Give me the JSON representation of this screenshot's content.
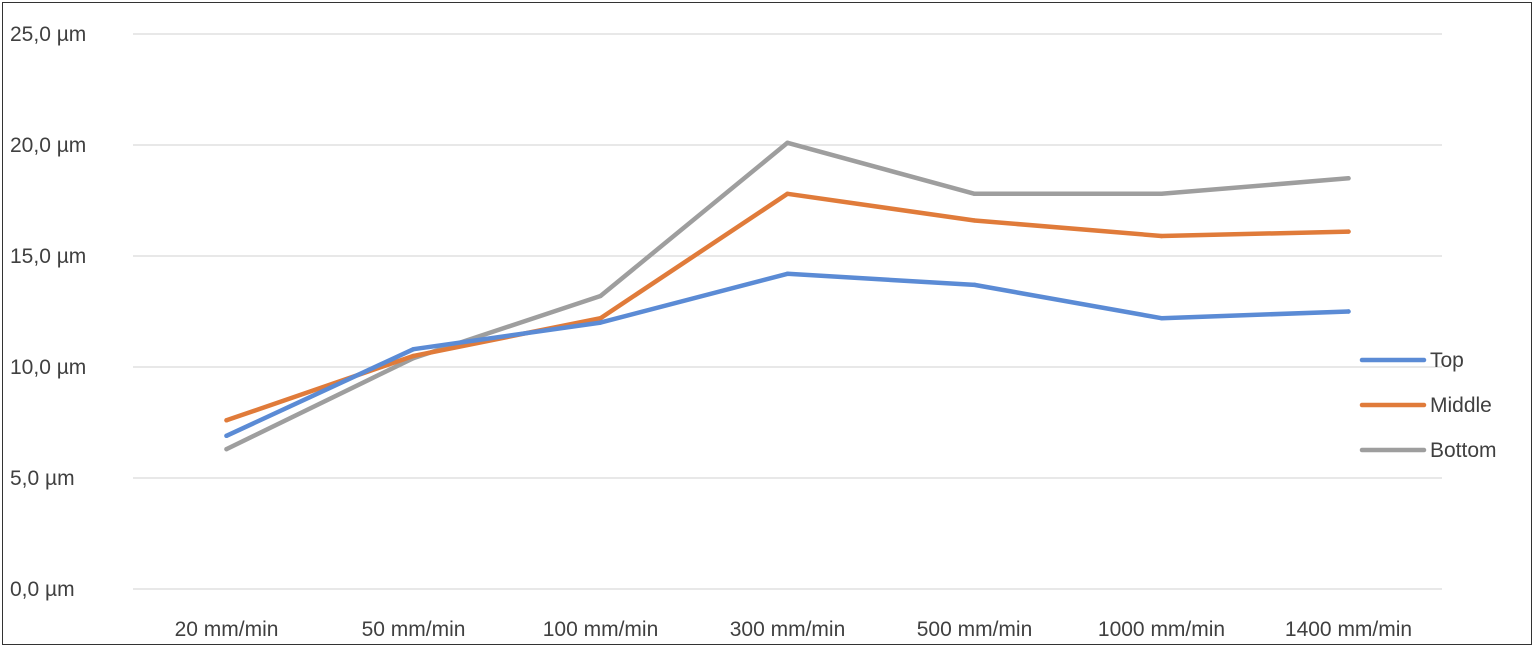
{
  "chart_data": {
    "type": "line",
    "title": "",
    "xlabel": "",
    "ylabel": "",
    "categories": [
      "20 mm/min",
      "50 mm/min",
      "100 mm/min",
      "300 mm/min",
      "500 mm/min",
      "1000 mm/min",
      "1400 mm/min"
    ],
    "y_ticks": [
      {
        "value": 0,
        "label": "0,0 µm"
      },
      {
        "value": 5,
        "label": "5,0 µm"
      },
      {
        "value": 10,
        "label": "10,0 µm"
      },
      {
        "value": 15,
        "label": "15,0 µm"
      },
      {
        "value": 20,
        "label": "20,0 µm"
      },
      {
        "value": 25,
        "label": "25,0 µm"
      }
    ],
    "ylim": [
      0,
      25
    ],
    "grid": true,
    "legend_position": "right",
    "series": [
      {
        "name": "Top",
        "color": "#5B8BD5",
        "values": [
          6.9,
          10.8,
          12.0,
          14.2,
          13.7,
          12.2,
          12.5
        ]
      },
      {
        "name": "Middle",
        "color": "#E07B3A",
        "values": [
          7.6,
          10.5,
          12.2,
          17.8,
          16.6,
          15.9,
          16.1
        ]
      },
      {
        "name": "Bottom",
        "color": "#9E9E9E",
        "values": [
          6.3,
          10.4,
          13.2,
          20.1,
          17.8,
          17.8,
          18.5
        ]
      }
    ]
  }
}
